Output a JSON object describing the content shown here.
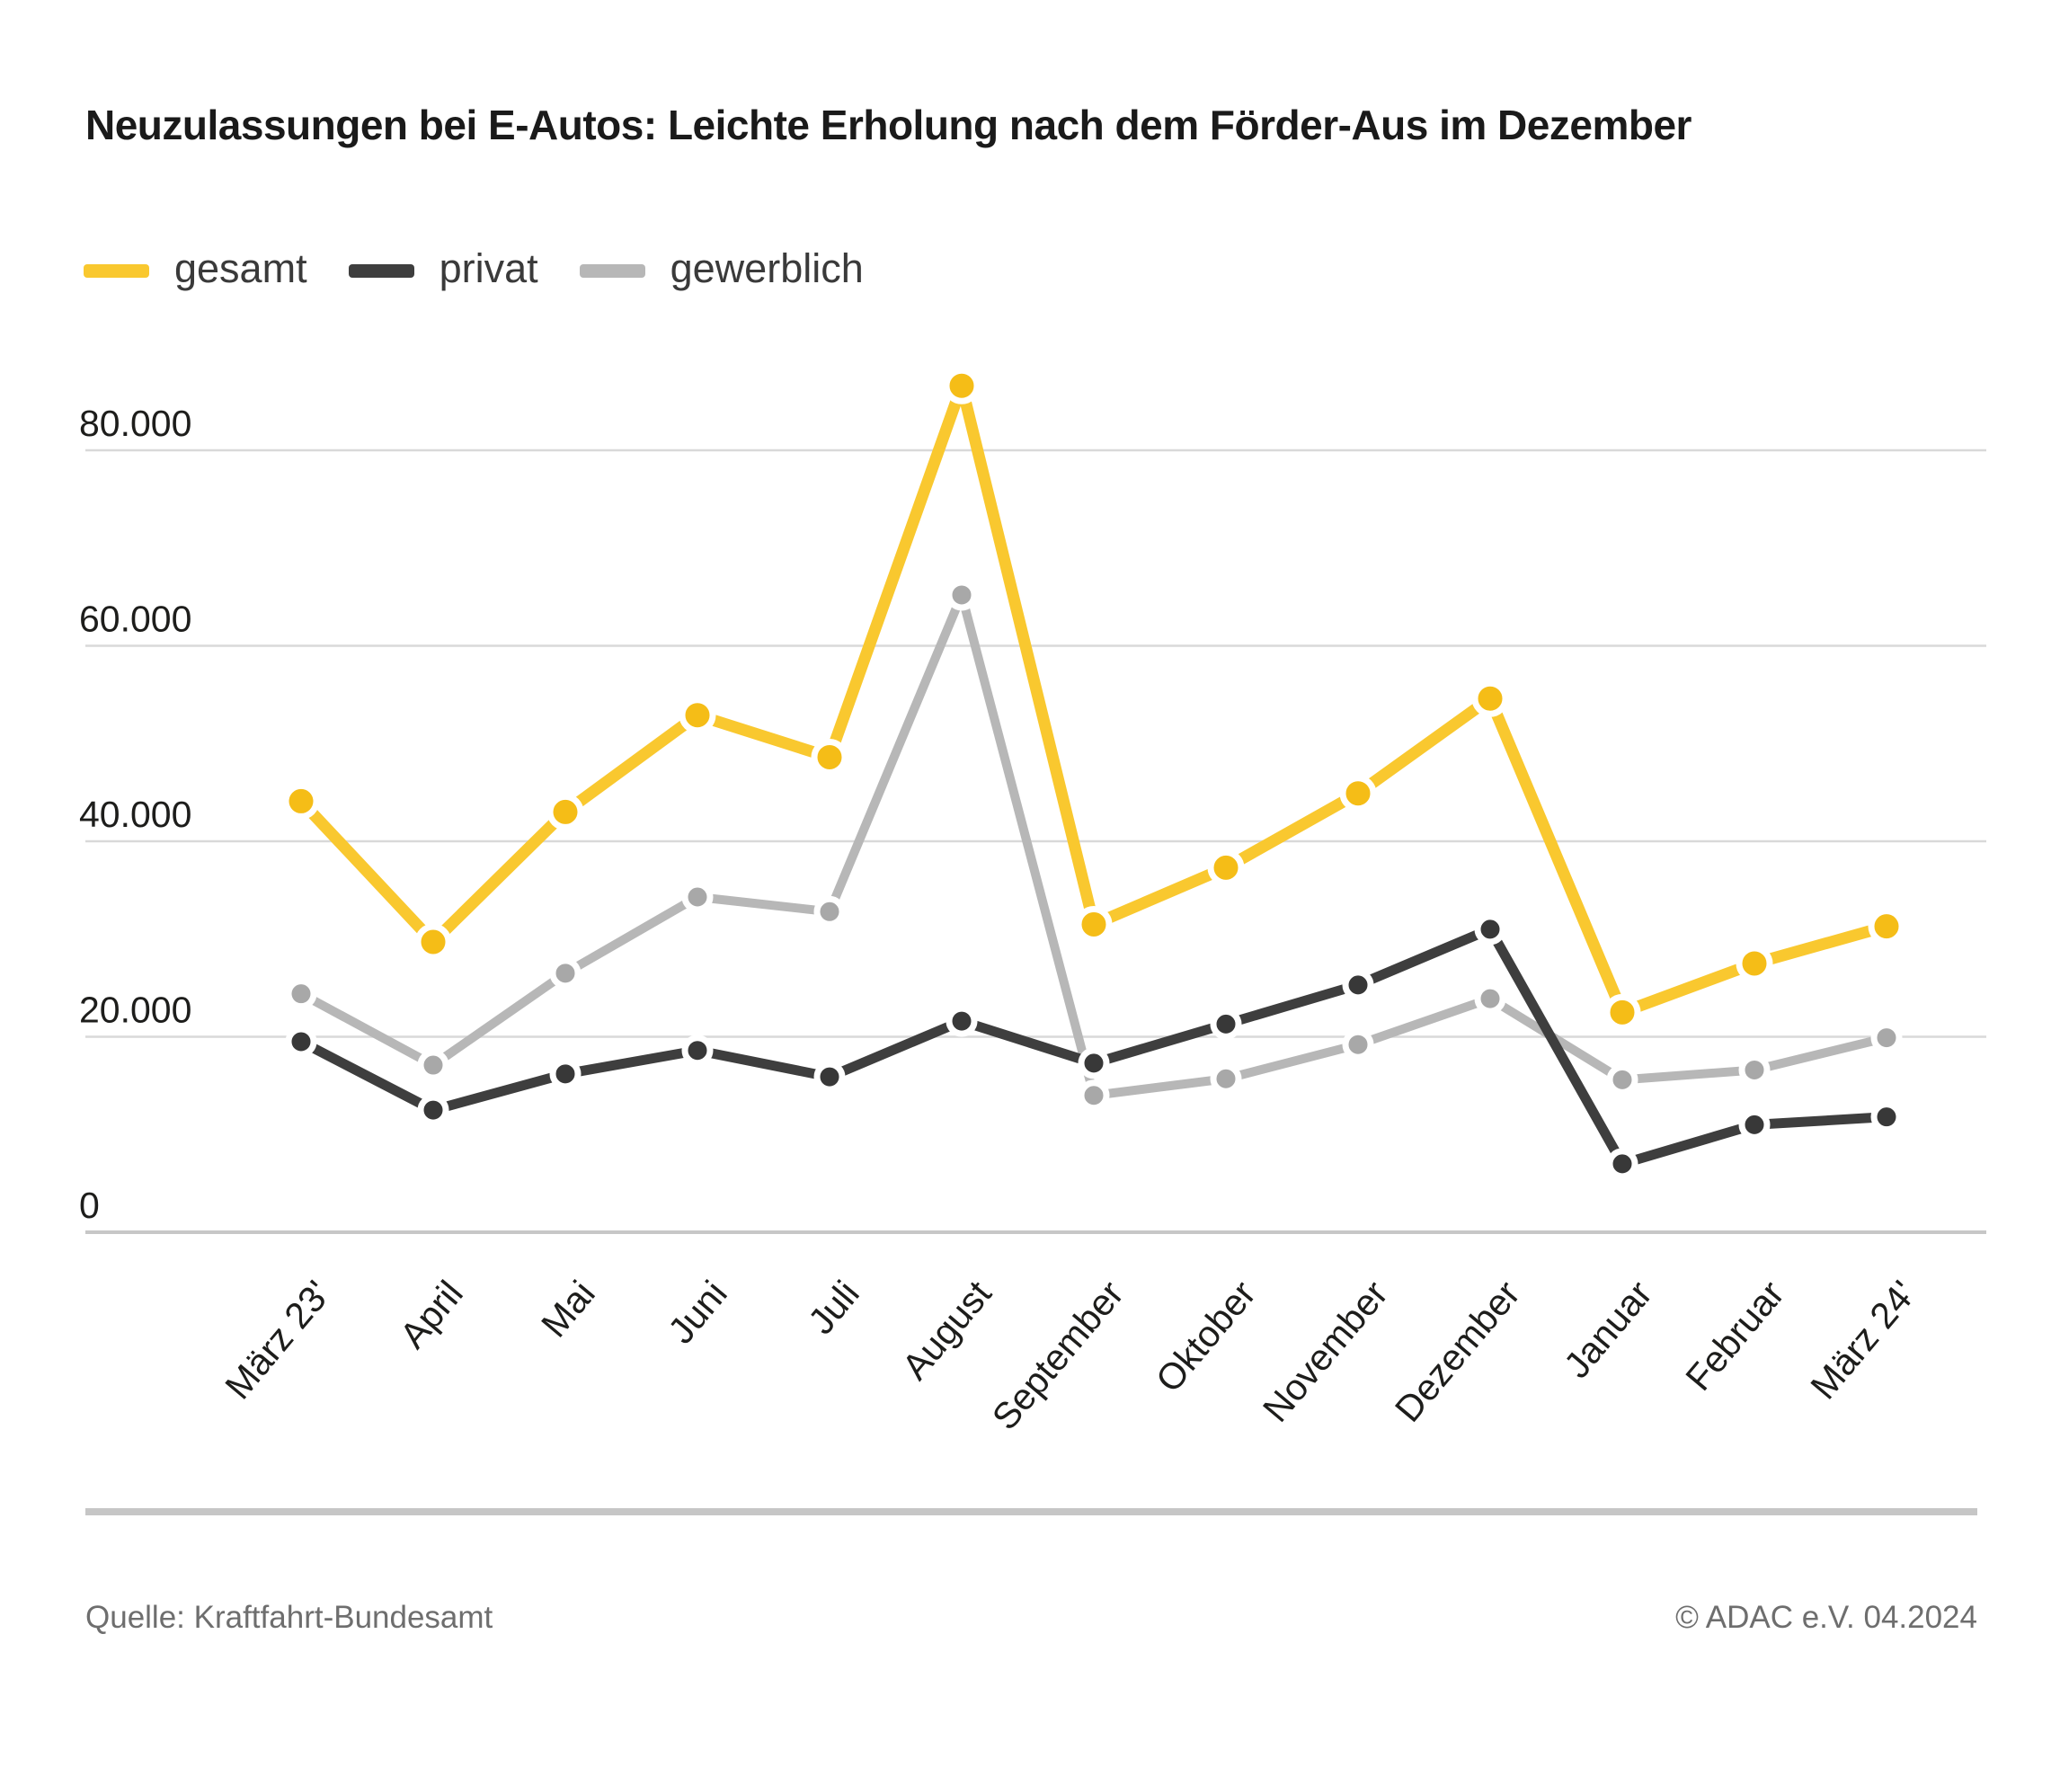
{
  "title": "Neuzulassungen bei E-Autos: Leichte Erholung nach dem Förder-Aus im Dezember",
  "legend": {
    "items": [
      {
        "label": "gesamt",
        "color": "#F9C82F"
      },
      {
        "label": "privat",
        "color": "#3E3E3E"
      },
      {
        "label": "gewerblich",
        "color": "#B7B7B7"
      }
    ]
  },
  "footer": {
    "source": "Quelle: Kraftfahrt-Bundesamt",
    "copyright": "© ADAC e.V. 04.2024"
  },
  "chart_data": {
    "type": "line",
    "title": "Neuzulassungen bei E-Autos: Leichte Erholung nach dem Förder-Aus im Dezember",
    "categories": [
      "März 23'",
      "April",
      "Mai",
      "Juni",
      "Juli",
      "August",
      "September",
      "Oktober",
      "November",
      "Dezember",
      "Januar",
      "Februar",
      "März 24'"
    ],
    "series": [
      {
        "name": "gesamt",
        "line_color": "#F9C82F",
        "point_color": "#F5BD17",
        "values": [
          44100,
          29700,
          43000,
          52900,
          48600,
          86600,
          31500,
          37300,
          44900,
          54600,
          22500,
          27500,
          31300
        ]
      },
      {
        "name": "privat",
        "line_color": "#3E3E3E",
        "point_color": "#383838",
        "values": [
          19500,
          12500,
          16200,
          18600,
          15900,
          21600,
          17300,
          21300,
          25300,
          31000,
          7000,
          11000,
          11800
        ]
      },
      {
        "name": "gewerblich",
        "line_color": "#B7B7B7",
        "point_color": "#A8A8A8",
        "values": [
          24400,
          17100,
          26500,
          34300,
          32800,
          65200,
          14000,
          15700,
          19200,
          23900,
          15600,
          16600,
          19900
        ]
      }
    ],
    "xlabel": "",
    "ylabel": "",
    "ylim": [
      0,
      88000
    ],
    "grid": true,
    "gridline_interval": 20000,
    "legend_position": "top-left",
    "yticks": [
      {
        "value": 0,
        "label": "0"
      },
      {
        "value": 20000,
        "label": "20.000"
      },
      {
        "value": 40000,
        "label": "40.000"
      },
      {
        "value": 60000,
        "label": "60.000"
      },
      {
        "value": 80000,
        "label": "80.000"
      }
    ]
  }
}
